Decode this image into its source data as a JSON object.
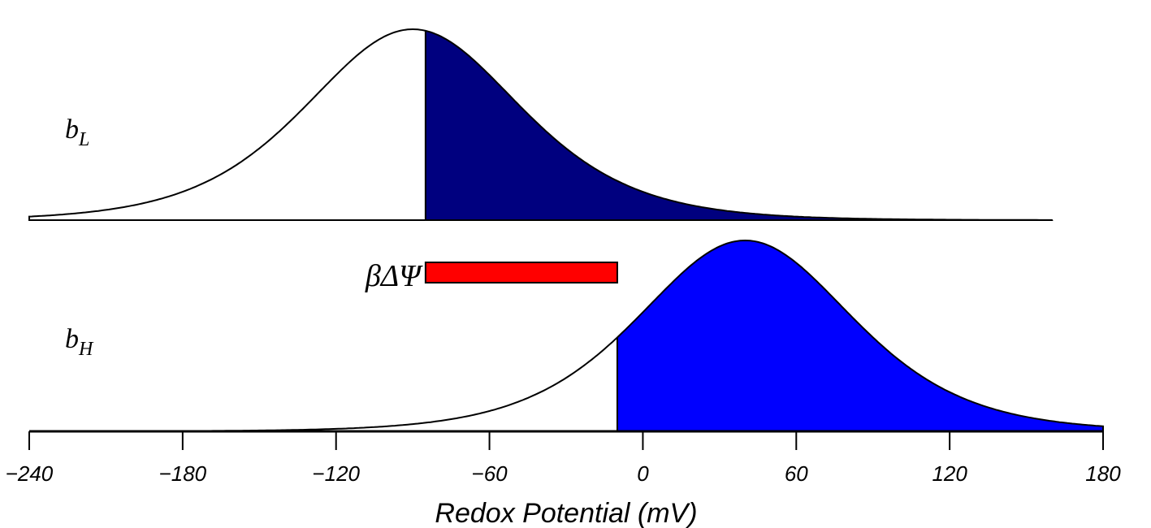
{
  "chart_data": {
    "type": "area",
    "xlabel": "Redox Potential (mV)",
    "xlim": [
      -240,
      180
    ],
    "xticks": [
      -240,
      -180,
      -120,
      -60,
      0,
      60,
      120,
      180
    ],
    "xtick_labels": [
      "−240",
      "−180",
      "−120",
      "−60",
      "0",
      "60",
      "120",
      "180"
    ],
    "curves": [
      {
        "name": "bL",
        "label_base": "b",
        "label_sub": "L",
        "midpoint_mV": -90,
        "range_mV": [
          -240,
          160
        ],
        "shaded_from_mV": -85,
        "fill_color": "#00007f",
        "width_mV": 28
      },
      {
        "name": "bH",
        "label_base": "b",
        "label_sub": "H",
        "midpoint_mV": 40,
        "range_mV": [
          -240,
          180
        ],
        "shaded_from_mV": -10,
        "fill_color": "#0000ff",
        "width_mV": 28
      }
    ],
    "bar": {
      "label": "βΔΨ",
      "from_mV": -85,
      "to_mV": -10,
      "color": "#ff0000"
    }
  }
}
